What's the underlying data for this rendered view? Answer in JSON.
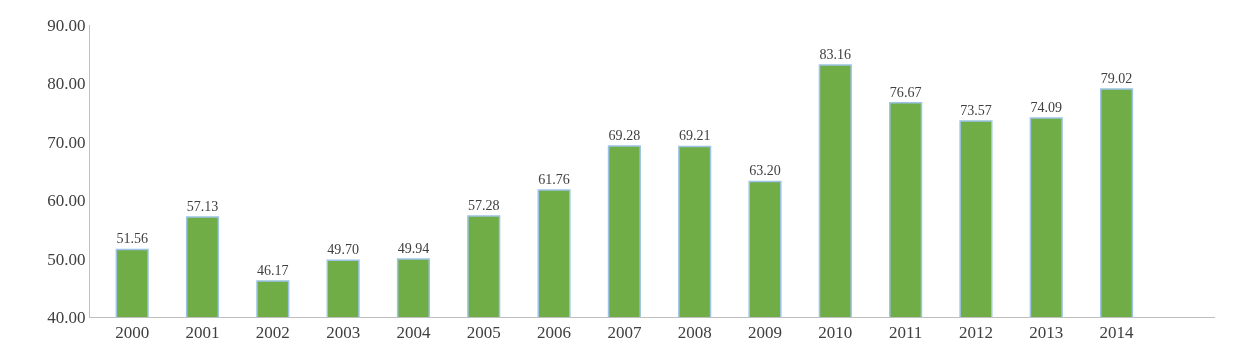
{
  "chart_data": {
    "type": "bar",
    "categories": [
      "2000",
      "2001",
      "2002",
      "2003",
      "2004",
      "2005",
      "2006",
      "2007",
      "2008",
      "2009",
      "2010",
      "2011",
      "2012",
      "2013",
      "2014"
    ],
    "values": [
      51.56,
      57.13,
      46.17,
      49.7,
      49.94,
      57.28,
      61.76,
      69.28,
      69.21,
      63.2,
      83.16,
      76.67,
      73.57,
      74.09,
      79.02
    ],
    "value_labels": [
      "51.56",
      "57.13",
      "46.17",
      "49.70",
      "49.94",
      "57.28",
      "61.76",
      "69.28",
      "69.21",
      "63.20",
      "83.16",
      "76.67",
      "73.57",
      "74.09",
      "79.02"
    ],
    "color": "#70ad47",
    "ylim": [
      40,
      90
    ],
    "yticks": [
      {
        "value": 40,
        "label": "40.00"
      },
      {
        "value": 50,
        "label": "50.00"
      },
      {
        "value": 60,
        "label": "60.00"
      },
      {
        "value": 70,
        "label": "70.00"
      },
      {
        "value": 80,
        "label": "80.00"
      },
      {
        "value": 90,
        "label": "90.00"
      }
    ],
    "legend": false
  }
}
